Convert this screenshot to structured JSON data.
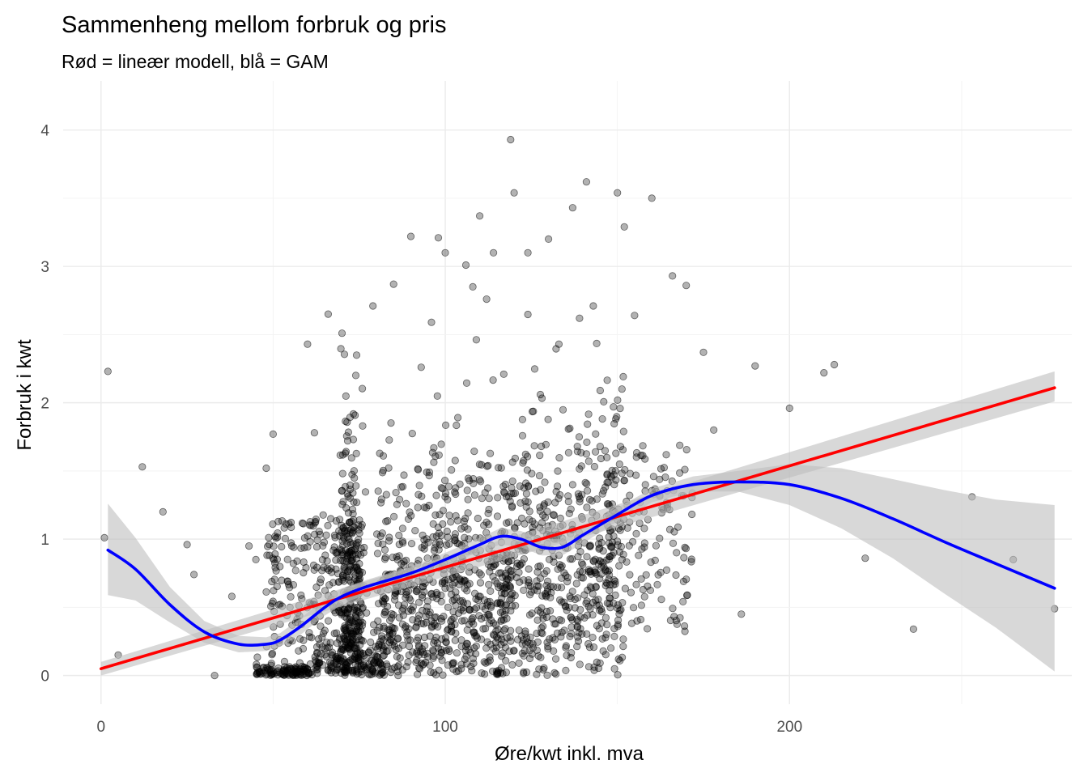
{
  "chart_data": {
    "type": "scatter",
    "title": "Sammenheng mellom forbruk og pris",
    "subtitle": "Rød = lineær modell, blå = GAM",
    "xlabel": "Øre/kwt inkl. mva",
    "ylabel": "Forbruk i kwt",
    "xlim": [
      -11,
      282
    ],
    "ylim": [
      -0.21,
      4.36
    ],
    "x_ticks": [
      0,
      100,
      200
    ],
    "x_tick_labels": [
      "0",
      "100",
      "200"
    ],
    "y_ticks": [
      0,
      1,
      2,
      3,
      4
    ],
    "y_tick_labels": [
      "0",
      "1",
      "2",
      "3",
      "4"
    ],
    "grid": true,
    "legend": "none",
    "colors": {
      "points": "#000000",
      "linear": "#ff0000",
      "gam": "#0000ff",
      "ribbon": "#bebebe"
    },
    "sample_points": {
      "note_free": true,
      "x": [
        2,
        1,
        5,
        12,
        18,
        25,
        27,
        33,
        38,
        43,
        45,
        48,
        50,
        52,
        56,
        60,
        62,
        66,
        70,
        74,
        76,
        79,
        82,
        85,
        88,
        90,
        93,
        96,
        98,
        100,
        103,
        106,
        108,
        110,
        112,
        114,
        117,
        119,
        120,
        124,
        126,
        130,
        133,
        137,
        139,
        141,
        143,
        145,
        147,
        150,
        152,
        155,
        160,
        163,
        166,
        170,
        175,
        178,
        186,
        190,
        200,
        210,
        213,
        222,
        236,
        253,
        265,
        277
      ],
      "y": [
        2.23,
        1.01,
        0.15,
        1.53,
        1.2,
        0.96,
        0.74,
        0.0,
        0.58,
        0.95,
        0.85,
        1.52,
        1.77,
        0.52,
        0.94,
        2.43,
        1.78,
        2.65,
        2.51,
        2.2,
        1.83,
        2.71,
        1.61,
        2.87,
        0.81,
        3.22,
        2.26,
        2.59,
        3.21,
        3.1,
        1.33,
        3.01,
        2.85,
        3.37,
        2.76,
        3.1,
        2.21,
        3.93,
        3.54,
        3.1,
        1.11,
        3.2,
        2.43,
        3.43,
        2.62,
        3.62,
        2.71,
        2.09,
        1.47,
        3.54,
        3.29,
        2.64,
        3.5,
        1.23,
        2.93,
        2.86,
        2.37,
        1.8,
        0.45,
        2.27,
        1.96,
        2.22,
        2.28,
        0.86,
        0.34,
        1.31,
        0.85,
        0.49
      ]
    },
    "series": [
      {
        "type": "line",
        "x": [
          0,
          277
        ],
        "y": [
          0.05,
          2.11
        ],
        "band_lower": [
          0.0,
          2.01
        ],
        "band_upper": [
          0.1,
          2.23
        ]
      },
      {
        "type": "line",
        "x": [
          2,
          10,
          20,
          30,
          40,
          48,
          52,
          58,
          65,
          70,
          77,
          90,
          100,
          110,
          116,
          122,
          128,
          134,
          140,
          150,
          160,
          172,
          185,
          200,
          215,
          230,
          245,
          260,
          277
        ],
        "y": [
          0.92,
          0.78,
          0.52,
          0.32,
          0.23,
          0.23,
          0.26,
          0.36,
          0.5,
          0.58,
          0.65,
          0.75,
          0.85,
          0.96,
          1.02,
          1.0,
          0.94,
          0.94,
          1.03,
          1.18,
          1.32,
          1.4,
          1.42,
          1.4,
          1.3,
          1.15,
          0.98,
          0.82,
          0.64
        ],
        "band_lower": [
          0.59,
          0.55,
          0.39,
          0.24,
          0.17,
          0.18,
          0.21,
          0.3,
          0.44,
          0.52,
          0.6,
          0.7,
          0.8,
          0.91,
          0.96,
          0.94,
          0.88,
          0.88,
          0.97,
          1.13,
          1.27,
          1.35,
          1.35,
          1.25,
          1.08,
          0.86,
          0.6,
          0.35,
          0.03
        ],
        "band_upper": [
          1.26,
          1.01,
          0.65,
          0.4,
          0.29,
          0.28,
          0.31,
          0.42,
          0.56,
          0.64,
          0.7,
          0.8,
          0.9,
          1.01,
          1.08,
          1.06,
          1.0,
          1.0,
          1.09,
          1.23,
          1.37,
          1.46,
          1.5,
          1.55,
          1.52,
          1.44,
          1.36,
          1.29,
          1.25
        ]
      }
    ]
  }
}
